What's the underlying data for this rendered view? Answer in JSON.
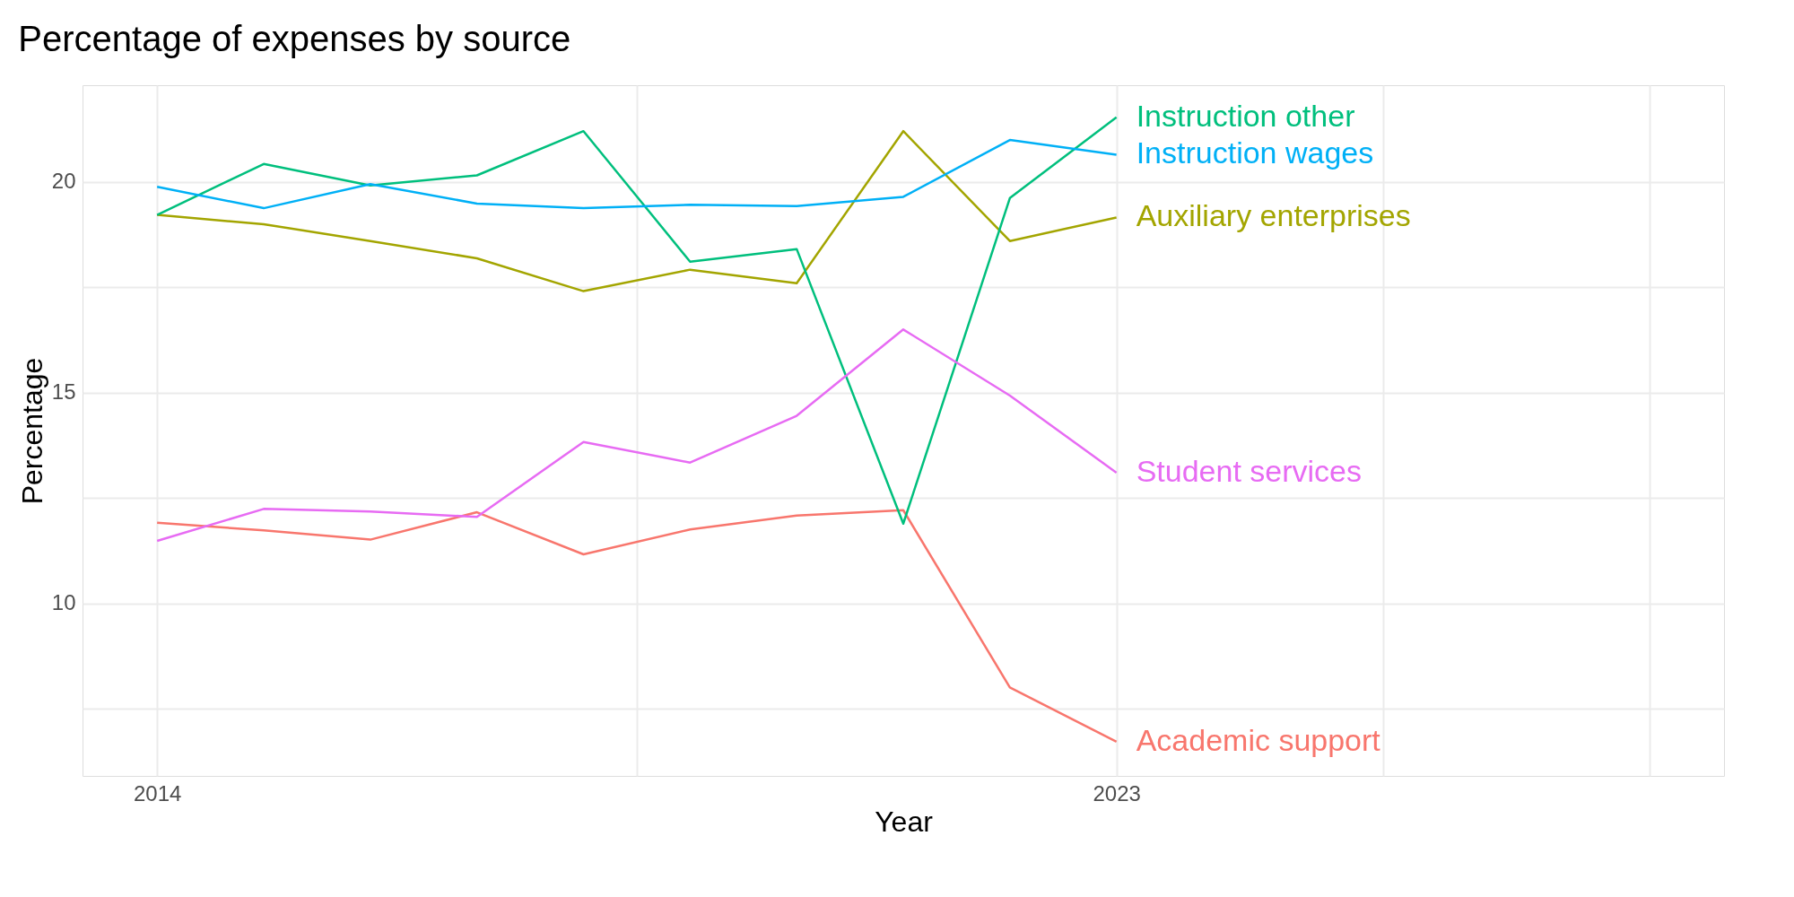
{
  "chart_data": {
    "type": "line",
    "title": "Percentage of expenses by source",
    "xlabel": "Year",
    "ylabel": "Percentage",
    "x": [
      2014,
      2015,
      2016,
      2017,
      2018,
      2019,
      2020,
      2021,
      2022,
      2023
    ],
    "series": [
      {
        "name": "Academic support",
        "color": "#f8766d",
        "values": [
          11.91,
          11.73,
          11.51,
          12.16,
          11.16,
          11.75,
          12.08,
          12.21,
          8.0,
          6.71
        ]
      },
      {
        "name": "Auxiliary enterprises",
        "color": "#a3a500",
        "values": [
          19.22,
          19.0,
          18.6,
          18.19,
          17.41,
          17.92,
          17.6,
          21.21,
          18.6,
          19.16
        ]
      },
      {
        "name": "Instruction other",
        "color": "#00bf7d",
        "values": [
          19.22,
          20.43,
          19.92,
          20.16,
          21.21,
          18.11,
          18.41,
          11.89,
          19.62,
          21.54
        ]
      },
      {
        "name": "Instruction wages",
        "color": "#00b0f6",
        "values": [
          19.89,
          19.38,
          19.95,
          19.49,
          19.38,
          19.46,
          19.43,
          19.65,
          21.0,
          20.65
        ]
      },
      {
        "name": "Student services",
        "color": "#e76bf3",
        "values": [
          11.48,
          12.24,
          12.18,
          12.05,
          13.83,
          13.34,
          14.45,
          16.5,
          14.93,
          13.1
        ]
      }
    ],
    "xlim": [
      2013.3,
      2028.7
    ],
    "xticks": [
      2014,
      {
        "value": 2018.5,
        "label": null
      },
      2023,
      {
        "value": 2025.5,
        "label": null
      },
      {
        "value": 2028,
        "label": null
      }
    ],
    "ylim": [
      5.9,
      22.3
    ],
    "yticks": [
      {
        "value": 7.5,
        "label": null
      },
      10,
      {
        "value": 12.5,
        "label": null
      },
      15,
      {
        "value": 17.5,
        "label": null
      },
      20
    ],
    "grid": true,
    "legend": false,
    "line_style": "solid",
    "marker": "none"
  }
}
